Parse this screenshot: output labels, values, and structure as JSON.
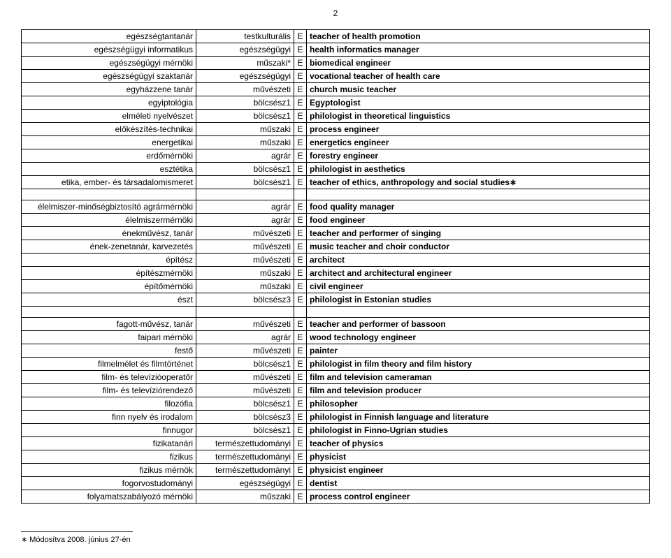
{
  "page_number": "2",
  "footnote_marker": "∗",
  "footnote_text": "Módosítva 2008. június 27-én",
  "groups": [
    {
      "rows": [
        [
          "egészségtantanár",
          "testkulturális",
          "E",
          "teacher of health promotion"
        ],
        [
          "egészségügyi informatikus",
          "egészségügyi",
          "E",
          "health informatics manager"
        ],
        [
          "egészségügyi mérnöki",
          "műszaki*",
          "E",
          "biomedical engineer"
        ],
        [
          "egészségügyi szaktanár",
          "egészségügyi",
          "E",
          "vocational teacher of health care"
        ],
        [
          "egyházzene tanár",
          "művészeti",
          "E",
          "church music teacher"
        ],
        [
          "egyiptológia",
          "bölcsész1",
          "E",
          "Egyptologist"
        ],
        [
          "elméleti nyelvészet",
          "bölcsész1",
          "E",
          "philologist in theoretical linguistics"
        ],
        [
          "előkészítés-technikai",
          "műszaki",
          "E",
          "process engineer"
        ],
        [
          "energetikai",
          "műszaki",
          "E",
          "energetics engineer"
        ],
        [
          "erdőmérnöki",
          "agrár",
          "E",
          "forestry engineer"
        ],
        [
          "esztétika",
          "bölcsész1",
          "E",
          "philologist in aesthetics"
        ],
        [
          "etika, ember- és társadalomismeret",
          "bölcsész1",
          "E",
          "teacher of ethics, anthropology and social studies∗"
        ]
      ]
    },
    {
      "rows": [
        [
          "élelmiszer-minőségbiztosító agrármérnöki",
          "agrár",
          "E",
          "food quality manager"
        ],
        [
          "élelmiszermérnöki",
          "agrár",
          "E",
          "food engineer"
        ],
        [
          "énekművész, tanár",
          "művészeti",
          "E",
          "teacher and performer of singing"
        ],
        [
          "ének-zenetanár, karvezetés",
          "művészeti",
          "E",
          "music teacher and choir conductor"
        ],
        [
          "építész",
          "művészeti",
          "E",
          "architect"
        ],
        [
          "építészmérnöki",
          "műszaki",
          "E",
          "architect and architectural engineer"
        ],
        [
          "építőmérnöki",
          "műszaki",
          "E",
          "civil engineer"
        ],
        [
          "észt",
          "bölcsész3",
          "E",
          "philologist in Estonian studies"
        ]
      ]
    },
    {
      "rows": [
        [
          "fagott-művész, tanár",
          "művészeti",
          "E",
          "teacher and performer of bassoon"
        ],
        [
          "faipari mérnöki",
          "agrár",
          "E",
          "wood technology engineer"
        ],
        [
          "festő",
          "művészeti",
          "E",
          "painter"
        ],
        [
          "filmelmélet és filmtörténet",
          "bölcsész1",
          "E",
          "philologist in film theory and film history"
        ],
        [
          "film- és televízióoperatőr",
          "művészeti",
          "E",
          "film and television cameraman"
        ],
        [
          "film- és televíziórendező",
          "művészeti",
          "E",
          "film and television producer"
        ],
        [
          "filozófia",
          "bölcsész1",
          "E",
          "philosopher"
        ],
        [
          "finn nyelv és irodalom",
          "bölcsész3",
          "E",
          "philologist in Finnish language and literature"
        ],
        [
          "finnugor",
          "bölcsész1",
          "E",
          "philologist in Finno-Ugrian studies"
        ],
        [
          "fizikatanári",
          "természettudományi",
          "E",
          "teacher of physics"
        ],
        [
          "fizikus",
          "természettudományi",
          "E",
          "physicist"
        ],
        [
          "fizikus mérnök",
          "természettudományi",
          "E",
          "physicist engineer"
        ],
        [
          "fogorvostudományi",
          "egészségügyi",
          "E",
          "dentist"
        ],
        [
          "folyamatszabályozó mérnöki",
          "műszaki",
          "E",
          "process control engineer"
        ]
      ]
    }
  ]
}
